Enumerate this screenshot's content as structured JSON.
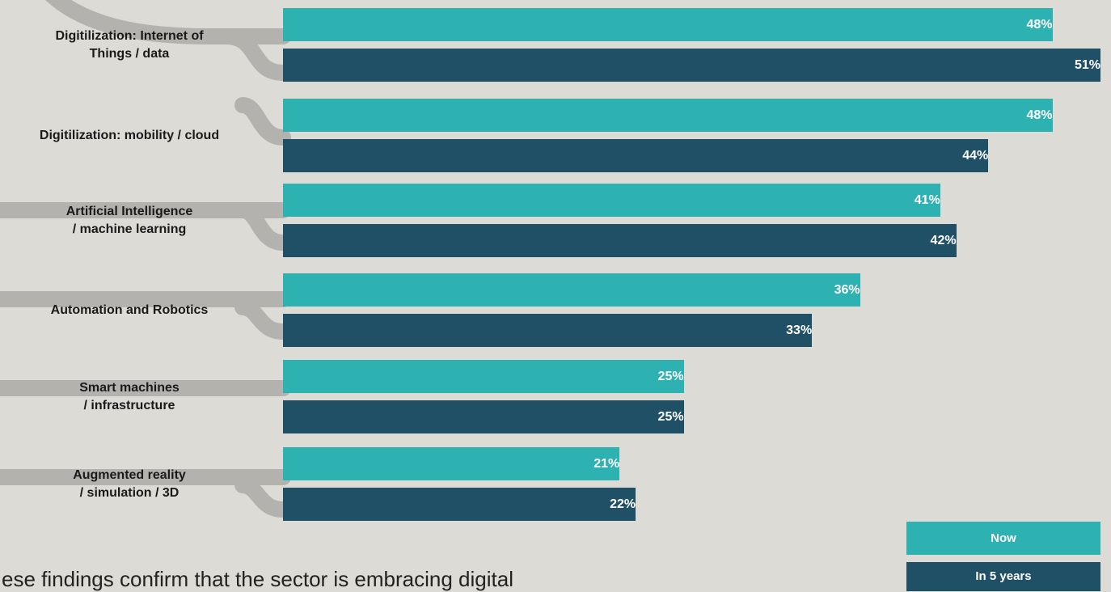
{
  "chart_data": {
    "type": "bar",
    "orientation": "horizontal",
    "categories": [
      "Digitilization: Internet of\nThings / data",
      "Digitilization: mobility / cloud",
      "Artificial Intelligence\n/ machine learning",
      "Automation and Robotics",
      "Smart machines\n/ infrastructure",
      "Augmented reality\n/ simulation / 3D"
    ],
    "series": [
      {
        "name": "Now",
        "color": "#2db1b1",
        "values": [
          48,
          48,
          41,
          36,
          25,
          21
        ],
        "value_labels": [
          "48%",
          "48%",
          "41%",
          "36%",
          "25%",
          "21%"
        ]
      },
      {
        "name": "In 5 years",
        "color": "#1f5066",
        "values": [
          51,
          44,
          42,
          33,
          25,
          22
        ],
        "value_labels": [
          "51%",
          "44%",
          "42%",
          "33%",
          "25%",
          "22%"
        ]
      }
    ],
    "caption": "ese findings confirm that the sector is embracing digital"
  }
}
